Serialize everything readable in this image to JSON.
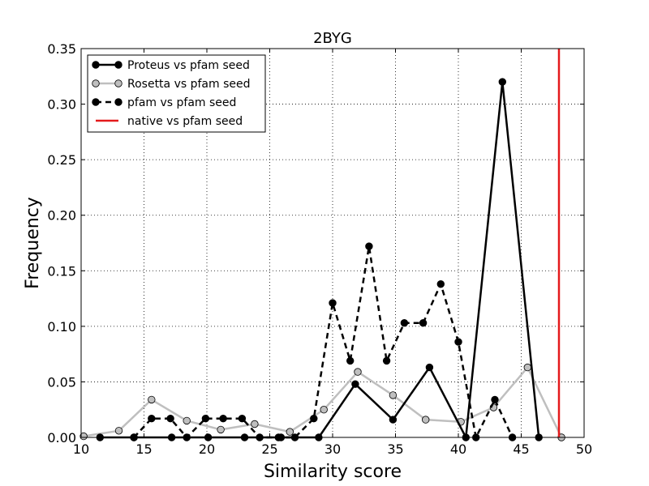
{
  "chart_data": {
    "type": "line",
    "title": "2BYG",
    "xlabel": "Similarity score",
    "ylabel": "Frequency",
    "xlim": [
      10,
      50
    ],
    "ylim": [
      0,
      0.35
    ],
    "xticks": [
      "10",
      "15",
      "20",
      "25",
      "30",
      "35",
      "40",
      "45",
      "50"
    ],
    "yticks": [
      "0.00",
      "0.05",
      "0.10",
      "0.15",
      "0.20",
      "0.25",
      "0.30",
      "0.35"
    ],
    "grid": true,
    "legend_position": "top-left",
    "series": [
      {
        "name": "Proteus vs pfam seed",
        "style": "solid",
        "color": "#000000",
        "marker_fill": "#000000",
        "points": [
          [
            11.5,
            0
          ],
          [
            14.2,
            0
          ],
          [
            17.2,
            0
          ],
          [
            20.1,
            0
          ],
          [
            23.0,
            0
          ],
          [
            25.9,
            0
          ],
          [
            28.9,
            0
          ],
          [
            31.8,
            0.048
          ],
          [
            34.8,
            0.016
          ],
          [
            37.7,
            0.063
          ],
          [
            40.6,
            0
          ],
          [
            43.5,
            0.32
          ],
          [
            46.4,
            0
          ]
        ]
      },
      {
        "name": "Rosetta vs pfam seed",
        "style": "solid",
        "color": "#bfbfbf",
        "marker_fill": "#bfbfbf",
        "points": [
          [
            10.2,
            0.001
          ],
          [
            13.0,
            0.006
          ],
          [
            15.6,
            0.034
          ],
          [
            18.4,
            0.015
          ],
          [
            21.1,
            0.007
          ],
          [
            23.8,
            0.012
          ],
          [
            26.6,
            0.005
          ],
          [
            29.3,
            0.025
          ],
          [
            32.0,
            0.059
          ],
          [
            34.8,
            0.038
          ],
          [
            37.4,
            0.016
          ],
          [
            40.2,
            0.014
          ],
          [
            42.8,
            0.027
          ],
          [
            45.5,
            0.063
          ],
          [
            48.2,
            0
          ]
        ]
      },
      {
        "name": "pfam vs pfam seed",
        "style": "dashed",
        "color": "#000000",
        "marker_fill": "#000000",
        "points": [
          [
            14.2,
            0
          ],
          [
            15.6,
            0.017
          ],
          [
            17.1,
            0.017
          ],
          [
            18.4,
            0
          ],
          [
            19.9,
            0.017
          ],
          [
            21.3,
            0.017
          ],
          [
            22.8,
            0.017
          ],
          [
            24.2,
            0
          ],
          [
            25.7,
            0
          ],
          [
            27.0,
            0
          ],
          [
            28.5,
            0.017
          ],
          [
            30.0,
            0.121
          ],
          [
            31.4,
            0.069
          ],
          [
            32.9,
            0.172
          ],
          [
            34.3,
            0.069
          ],
          [
            35.7,
            0.103
          ],
          [
            37.2,
            0.103
          ],
          [
            38.6,
            0.138
          ],
          [
            40.0,
            0.086
          ],
          [
            41.4,
            0
          ],
          [
            42.9,
            0.034
          ],
          [
            44.3,
            0
          ]
        ]
      },
      {
        "name": "native vs pfam seed",
        "style": "vline",
        "color": "#e41a1c",
        "x": 48
      }
    ]
  }
}
